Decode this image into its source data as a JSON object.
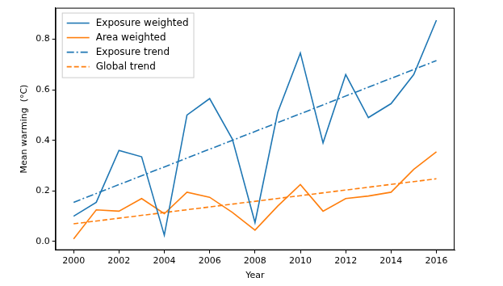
{
  "chart_data": {
    "type": "line",
    "x_label": "Year",
    "y_label": "Mean warming  (°C)",
    "x": [
      2000,
      2001,
      2002,
      2003,
      2004,
      2005,
      2006,
      2007,
      2008,
      2009,
      2010,
      2011,
      2012,
      2013,
      2014,
      2015,
      2016
    ],
    "series": [
      {
        "name": "Exposure weighted",
        "color": "#1f77b4",
        "line_style": "solid",
        "values": [
          0.1,
          0.155,
          0.36,
          0.335,
          0.025,
          0.5,
          0.565,
          0.405,
          0.075,
          0.51,
          0.745,
          0.39,
          0.66,
          0.49,
          0.545,
          0.66,
          0.875
        ]
      },
      {
        "name": "Area weighted",
        "color": "#ff7f0e",
        "line_style": "solid",
        "values": [
          0.01,
          0.125,
          0.12,
          0.17,
          0.11,
          0.195,
          0.175,
          0.115,
          0.045,
          0.14,
          0.225,
          0.12,
          0.17,
          0.18,
          0.195,
          0.285,
          0.355
        ]
      },
      {
        "name": "Exposure trend",
        "color": "#1f77b4",
        "line_style": "dashdot",
        "x": [
          2000,
          2016
        ],
        "values": [
          0.155,
          0.715
        ]
      },
      {
        "name": "Global trend",
        "color": "#ff7f0e",
        "line_style": "dashed",
        "x": [
          2000,
          2016
        ],
        "values": [
          0.07,
          0.248
        ]
      }
    ],
    "xlim": [
      1999.2,
      2016.8
    ],
    "xticks": [
      2000,
      2002,
      2004,
      2006,
      2008,
      2010,
      2012,
      2014,
      2016
    ],
    "ylim": [
      -0.034,
      0.924
    ],
    "yticks": [
      {
        "value": 0,
        "label": "0.0"
      },
      0.2,
      0.4,
      0.6,
      0.8
    ],
    "grid": false,
    "legend": "upper left"
  }
}
